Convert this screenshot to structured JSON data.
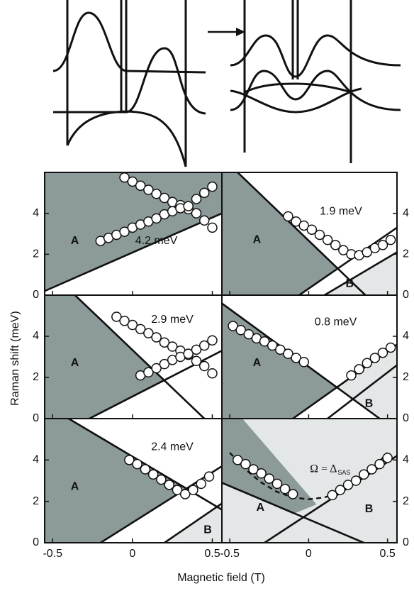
{
  "chart_data": {
    "type": "panel_grid",
    "xlabel": "Magnetic field (T)",
    "ylabel": "Raman shift (meV)",
    "xlim": [
      -0.55,
      0.56
    ],
    "ylim": [
      0,
      6
    ],
    "xticks": [
      -0.5,
      0,
      0.5
    ],
    "yticks": [
      0,
      2,
      4
    ],
    "point_color": "#ffffff",
    "line_color": "#111111",
    "panels": [
      {
        "type": "scatter",
        "annotation": "4.2 meV",
        "regions": [
          {
            "name": "A",
            "color": "#8c9a9a",
            "x": [
              -0.55,
              0.56,
              0.56,
              -0.55
            ],
            "y": [
              0.2,
              4.0,
              6,
              6
            ]
          }
        ],
        "lines": [
          {
            "x": [
              -0.55,
              0.56
            ],
            "y": [
              0.2,
              4.0
            ]
          }
        ],
        "x": [
          -0.05,
          0.0,
          0.05,
          0.1,
          0.15,
          0.2,
          0.25,
          0.3,
          0.35,
          0.4,
          0.45,
          0.5,
          -0.2,
          -0.15,
          -0.1,
          -0.05,
          0.0,
          0.05,
          0.1,
          0.15,
          0.2,
          0.25,
          0.3,
          0.35,
          0.4,
          0.45,
          0.5
        ],
        "y": [
          5.75,
          5.55,
          5.35,
          5.15,
          4.95,
          4.75,
          4.55,
          4.4,
          4.2,
          4.0,
          3.65,
          3.3,
          2.65,
          2.8,
          2.95,
          3.1,
          3.3,
          3.45,
          3.6,
          3.75,
          3.95,
          4.1,
          4.25,
          4.35,
          4.7,
          5.0,
          5.3
        ]
      },
      {
        "type": "scatter",
        "annotation": "1.9 meV",
        "regions": [
          {
            "name": "A",
            "color": "#8c9a9a",
            "x": [
              -0.55,
              -0.06,
              0.185,
              -0.45,
              -0.55
            ],
            "y": [
              0,
              0,
              1.3,
              6,
              6
            ]
          },
          {
            "name": "B",
            "color": "#e4e7e7",
            "x": [
              0.1,
              0.56,
              0.56
            ],
            "y": [
              0,
              0,
              2.1
            ]
          }
        ],
        "lines": [
          {
            "x": [
              -0.45,
              0.36
            ],
            "y": [
              6,
              0
            ]
          },
          {
            "x": [
              -0.06,
              0.56
            ],
            "y": [
              0,
              3.3
            ]
          },
          {
            "x": [
              0.1,
              0.56
            ],
            "y": [
              0,
              2.1
            ]
          }
        ],
        "x": [
          -0.13,
          -0.08,
          -0.03,
          0.02,
          0.07,
          0.12,
          0.17,
          0.22,
          0.27,
          0.32,
          0.37,
          0.42,
          0.47,
          0.52
        ],
        "y": [
          3.85,
          3.6,
          3.4,
          3.2,
          2.95,
          2.7,
          2.45,
          2.2,
          2.0,
          1.95,
          2.1,
          2.3,
          2.45,
          2.7
        ]
      },
      {
        "type": "scatter",
        "annotation": "2.9 meV",
        "regions": [
          {
            "name": "A",
            "color": "#8c9a9a",
            "x": [
              -0.55,
              -0.27,
              0.198,
              -0.36,
              -0.55
            ],
            "y": [
              0,
              0,
              1.87,
              6,
              6
            ]
          }
        ],
        "lines": [
          {
            "x": [
              -0.36,
              0.45
            ],
            "y": [
              6,
              0
            ]
          },
          {
            "x": [
              -0.27,
              0.56
            ],
            "y": [
              0,
              3.3
            ]
          }
        ],
        "x": [
          -0.1,
          -0.05,
          0.0,
          0.05,
          0.1,
          0.15,
          0.2,
          0.25,
          0.3,
          0.35,
          0.4,
          0.45,
          0.5,
          0.05,
          0.1,
          0.15,
          0.2,
          0.25,
          0.3,
          0.35,
          0.4,
          0.45,
          0.5
        ],
        "y": [
          4.95,
          4.75,
          4.55,
          4.35,
          4.15,
          3.95,
          3.7,
          3.5,
          3.3,
          3.1,
          2.8,
          2.55,
          2.2,
          2.1,
          2.25,
          2.45,
          2.65,
          2.85,
          3.0,
          3.15,
          3.35,
          3.55,
          3.8
        ]
      },
      {
        "type": "scatter",
        "annotation": "0.8 meV",
        "regions": [
          {
            "name": "A",
            "color": "#8c9a9a",
            "x": [
              -0.55,
              -0.1,
              0.179,
              -0.55
            ],
            "y": [
              0,
              0,
              1.52,
              5.6
            ]
          },
          {
            "name": "B",
            "color": "#e4e7e7",
            "x": [
              0.179,
              0.45,
              0.56,
              0.56
            ],
            "y": [
              1.52,
              0,
              0,
              3.6
            ]
          }
        ],
        "lines": [
          {
            "x": [
              -0.55,
              0.45
            ],
            "y": [
              5.6,
              0
            ]
          },
          {
            "x": [
              -0.1,
              0.56
            ],
            "y": [
              0,
              3.6
            ]
          },
          {
            "x": [
              0.12,
              0.56
            ],
            "y": [
              0,
              2.6
            ]
          }
        ],
        "x": [
          -0.48,
          -0.43,
          -0.38,
          -0.33,
          -0.28,
          -0.23,
          -0.18,
          -0.13,
          -0.08,
          -0.03,
          0.27,
          0.32,
          0.37,
          0.42,
          0.47,
          0.52
        ],
        "y": [
          4.5,
          4.3,
          4.1,
          3.9,
          3.75,
          3.55,
          3.35,
          3.15,
          2.95,
          2.75,
          2.1,
          2.4,
          2.7,
          2.95,
          3.2,
          3.45
        ]
      },
      {
        "type": "scatter",
        "annotation": "2.4 meV",
        "regions": [
          {
            "name": "A",
            "color": "#8c9a9a",
            "x": [
              -0.55,
              -0.2,
              0.338,
              -0.4,
              -0.55
            ],
            "y": [
              0,
              0,
              2.62,
              6,
              6
            ]
          },
          {
            "name": "B",
            "color": "#e4e7e7",
            "x": [
              0.2,
              0.56,
              0.56
            ],
            "y": [
              0,
              0,
              1.9
            ]
          }
        ],
        "lines": [
          {
            "x": [
              -0.4,
              0.56
            ],
            "y": [
              6,
              1.6
            ]
          },
          {
            "x": [
              -0.2,
              0.56
            ],
            "y": [
              0,
              3.7
            ]
          },
          {
            "x": [
              0.2,
              0.56
            ],
            "y": [
              0,
              1.9
            ]
          }
        ],
        "x": [
          -0.02,
          0.03,
          0.08,
          0.13,
          0.18,
          0.23,
          0.28,
          0.33,
          0.38,
          0.43,
          0.48
        ],
        "y": [
          4.0,
          3.8,
          3.55,
          3.3,
          3.05,
          2.8,
          2.55,
          2.35,
          2.55,
          2.85,
          3.2
        ]
      },
      {
        "type": "scatter",
        "annotation": "Ω = Δ",
        "annotation_sub": "SAS",
        "regions": [
          {
            "name": "B",
            "color": "#e4e7e7",
            "x": [
              -0.55,
              0.56,
              0.56,
              -0.55
            ],
            "y": [
              0,
              0,
              6,
              6
            ]
          },
          {
            "name": "A",
            "color": "#8c9a9a",
            "x": [
              -0.55,
              -0.55,
              -0.42,
              0.05,
              -0.1
            ],
            "y": [
              2.9,
              6,
              6,
              1.85,
              1.39
            ]
          }
        ],
        "lines": [
          {
            "x": [
              -0.55,
              0.35
            ],
            "y": [
              2.9,
              0
            ]
          },
          {
            "x": [
              -0.28,
              0.56
            ],
            "y": [
              0,
              4.2
            ]
          }
        ],
        "fit": {
          "x": [
            -0.5,
            -0.4,
            -0.3,
            -0.2,
            -0.1,
            0,
            0.1,
            0.2,
            0.3,
            0.4,
            0.5
          ],
          "y": [
            4.35,
            3.54,
            2.91,
            2.46,
            2.19,
            2.1,
            2.19,
            2.46,
            2.91,
            3.54,
            4.35
          ],
          "dashed": true
        },
        "x": [
          -0.45,
          -0.4,
          -0.35,
          -0.3,
          -0.25,
          -0.2,
          -0.15,
          -0.1,
          0.15,
          0.2,
          0.25,
          0.3,
          0.35,
          0.4,
          0.45,
          0.5
        ],
        "y": [
          4.0,
          3.8,
          3.55,
          3.35,
          3.1,
          2.85,
          2.6,
          2.35,
          2.3,
          2.55,
          2.8,
          3.0,
          3.3,
          3.55,
          3.8,
          4.1
        ]
      }
    ]
  }
}
